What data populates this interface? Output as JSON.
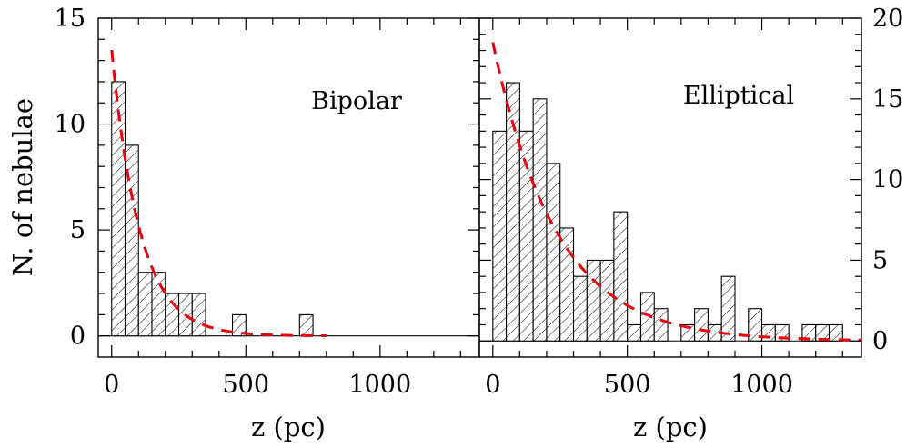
{
  "chart_data": [
    {
      "type": "bar",
      "panel": "left",
      "annotation": "Bipolar",
      "xlabel": "z (pc)",
      "ylabel": "N. of nebulae",
      "xlim": [
        -50,
        1370
      ],
      "ylim": [
        -1,
        15
      ],
      "xticks": [
        0,
        500,
        1000
      ],
      "yticks": [
        0,
        5,
        10,
        15
      ],
      "ytick_side": "left",
      "bin_width": 50,
      "bins": [
        {
          "x0": 0,
          "value": 12
        },
        {
          "x0": 50,
          "value": 9
        },
        {
          "x0": 100,
          "value": 3
        },
        {
          "x0": 150,
          "value": 3
        },
        {
          "x0": 200,
          "value": 2
        },
        {
          "x0": 250,
          "value": 2
        },
        {
          "x0": 300,
          "value": 2
        },
        {
          "x0": 450,
          "value": 1
        },
        {
          "x0": 700,
          "value": 1
        }
      ],
      "fit": {
        "style": "red dashed",
        "amplitude": 13.5,
        "scale_pc": 105,
        "x_range": [
          0,
          800
        ]
      }
    },
    {
      "type": "bar",
      "panel": "right",
      "annotation": "Elliptical",
      "xlabel": "z (pc)",
      "ylabel": "",
      "xlim": [
        -50,
        1370
      ],
      "ylim": [
        -1,
        20
      ],
      "xticks": [
        0,
        500,
        1000
      ],
      "yticks": [
        0,
        5,
        10,
        15,
        20
      ],
      "ytick_side": "right",
      "bin_width": 50,
      "bins": [
        {
          "x0": 0,
          "value": 13
        },
        {
          "x0": 50,
          "value": 16
        },
        {
          "x0": 100,
          "value": 13
        },
        {
          "x0": 150,
          "value": 15
        },
        {
          "x0": 200,
          "value": 11
        },
        {
          "x0": 250,
          "value": 7
        },
        {
          "x0": 300,
          "value": 4
        },
        {
          "x0": 350,
          "value": 5
        },
        {
          "x0": 400,
          "value": 5
        },
        {
          "x0": 450,
          "value": 8
        },
        {
          "x0": 500,
          "value": 1
        },
        {
          "x0": 550,
          "value": 3
        },
        {
          "x0": 600,
          "value": 2
        },
        {
          "x0": 700,
          "value": 1
        },
        {
          "x0": 750,
          "value": 2
        },
        {
          "x0": 800,
          "value": 1
        },
        {
          "x0": 850,
          "value": 4
        },
        {
          "x0": 950,
          "value": 2
        },
        {
          "x0": 1000,
          "value": 1
        },
        {
          "x0": 1050,
          "value": 1
        },
        {
          "x0": 1150,
          "value": 1
        },
        {
          "x0": 1200,
          "value": 1
        },
        {
          "x0": 1250,
          "value": 1
        }
      ],
      "fit": {
        "style": "red dashed",
        "amplitude": 18.5,
        "scale_pc": 235,
        "x_range": [
          0,
          1370
        ]
      }
    }
  ]
}
